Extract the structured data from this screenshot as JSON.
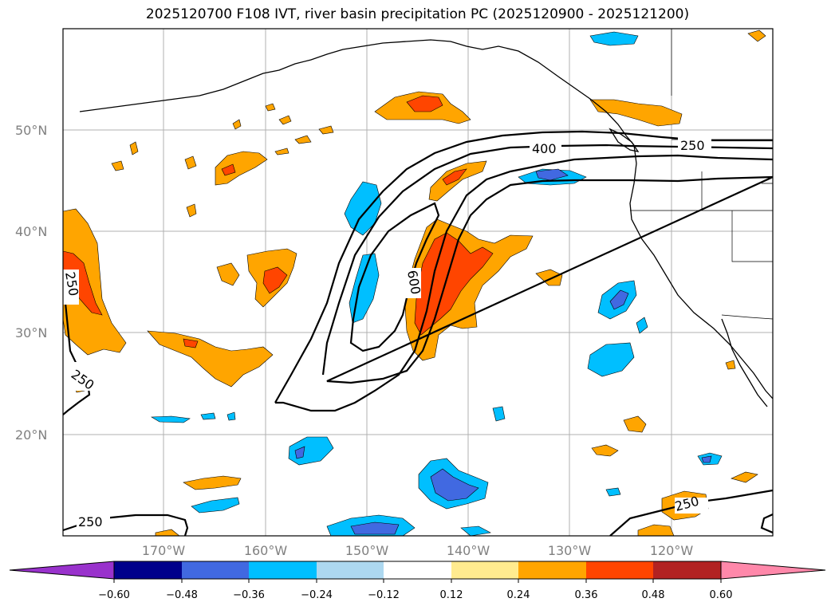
{
  "title": "2025120700 F108 IVT, river basin precipitation PC (2025120900 - 2025121200)",
  "map": {
    "lat_ticks": [
      "50°N",
      "40°N",
      "30°N",
      "20°N"
    ],
    "lon_ticks": [
      "170°W",
      "160°W",
      "150°W",
      "140°W",
      "130°W",
      "120°W"
    ],
    "contour_labels": [
      "400",
      "600",
      "250",
      "250",
      "250",
      "250",
      "250"
    ],
    "colors": {
      "orange": "#ffa500",
      "orange_red": "#ff4500",
      "deep_sky_blue": "#00bfff",
      "royal_blue": "#4169e1",
      "land_line": "#000000",
      "grid": "#b0b0b0"
    }
  },
  "colorbar": {
    "colors": [
      "#9932cc",
      "#00008b",
      "#4169e1",
      "#00bfff",
      "#add8f0",
      "#ffffff",
      "#ffeb8f",
      "#ffa500",
      "#ff4500",
      "#b22222",
      "#ff88aa"
    ],
    "labels": [
      "−0.60",
      "−0.48",
      "−0.36",
      "−0.24",
      "−0.12",
      "0.12",
      "0.24",
      "0.36",
      "0.48",
      "0.60"
    ]
  }
}
